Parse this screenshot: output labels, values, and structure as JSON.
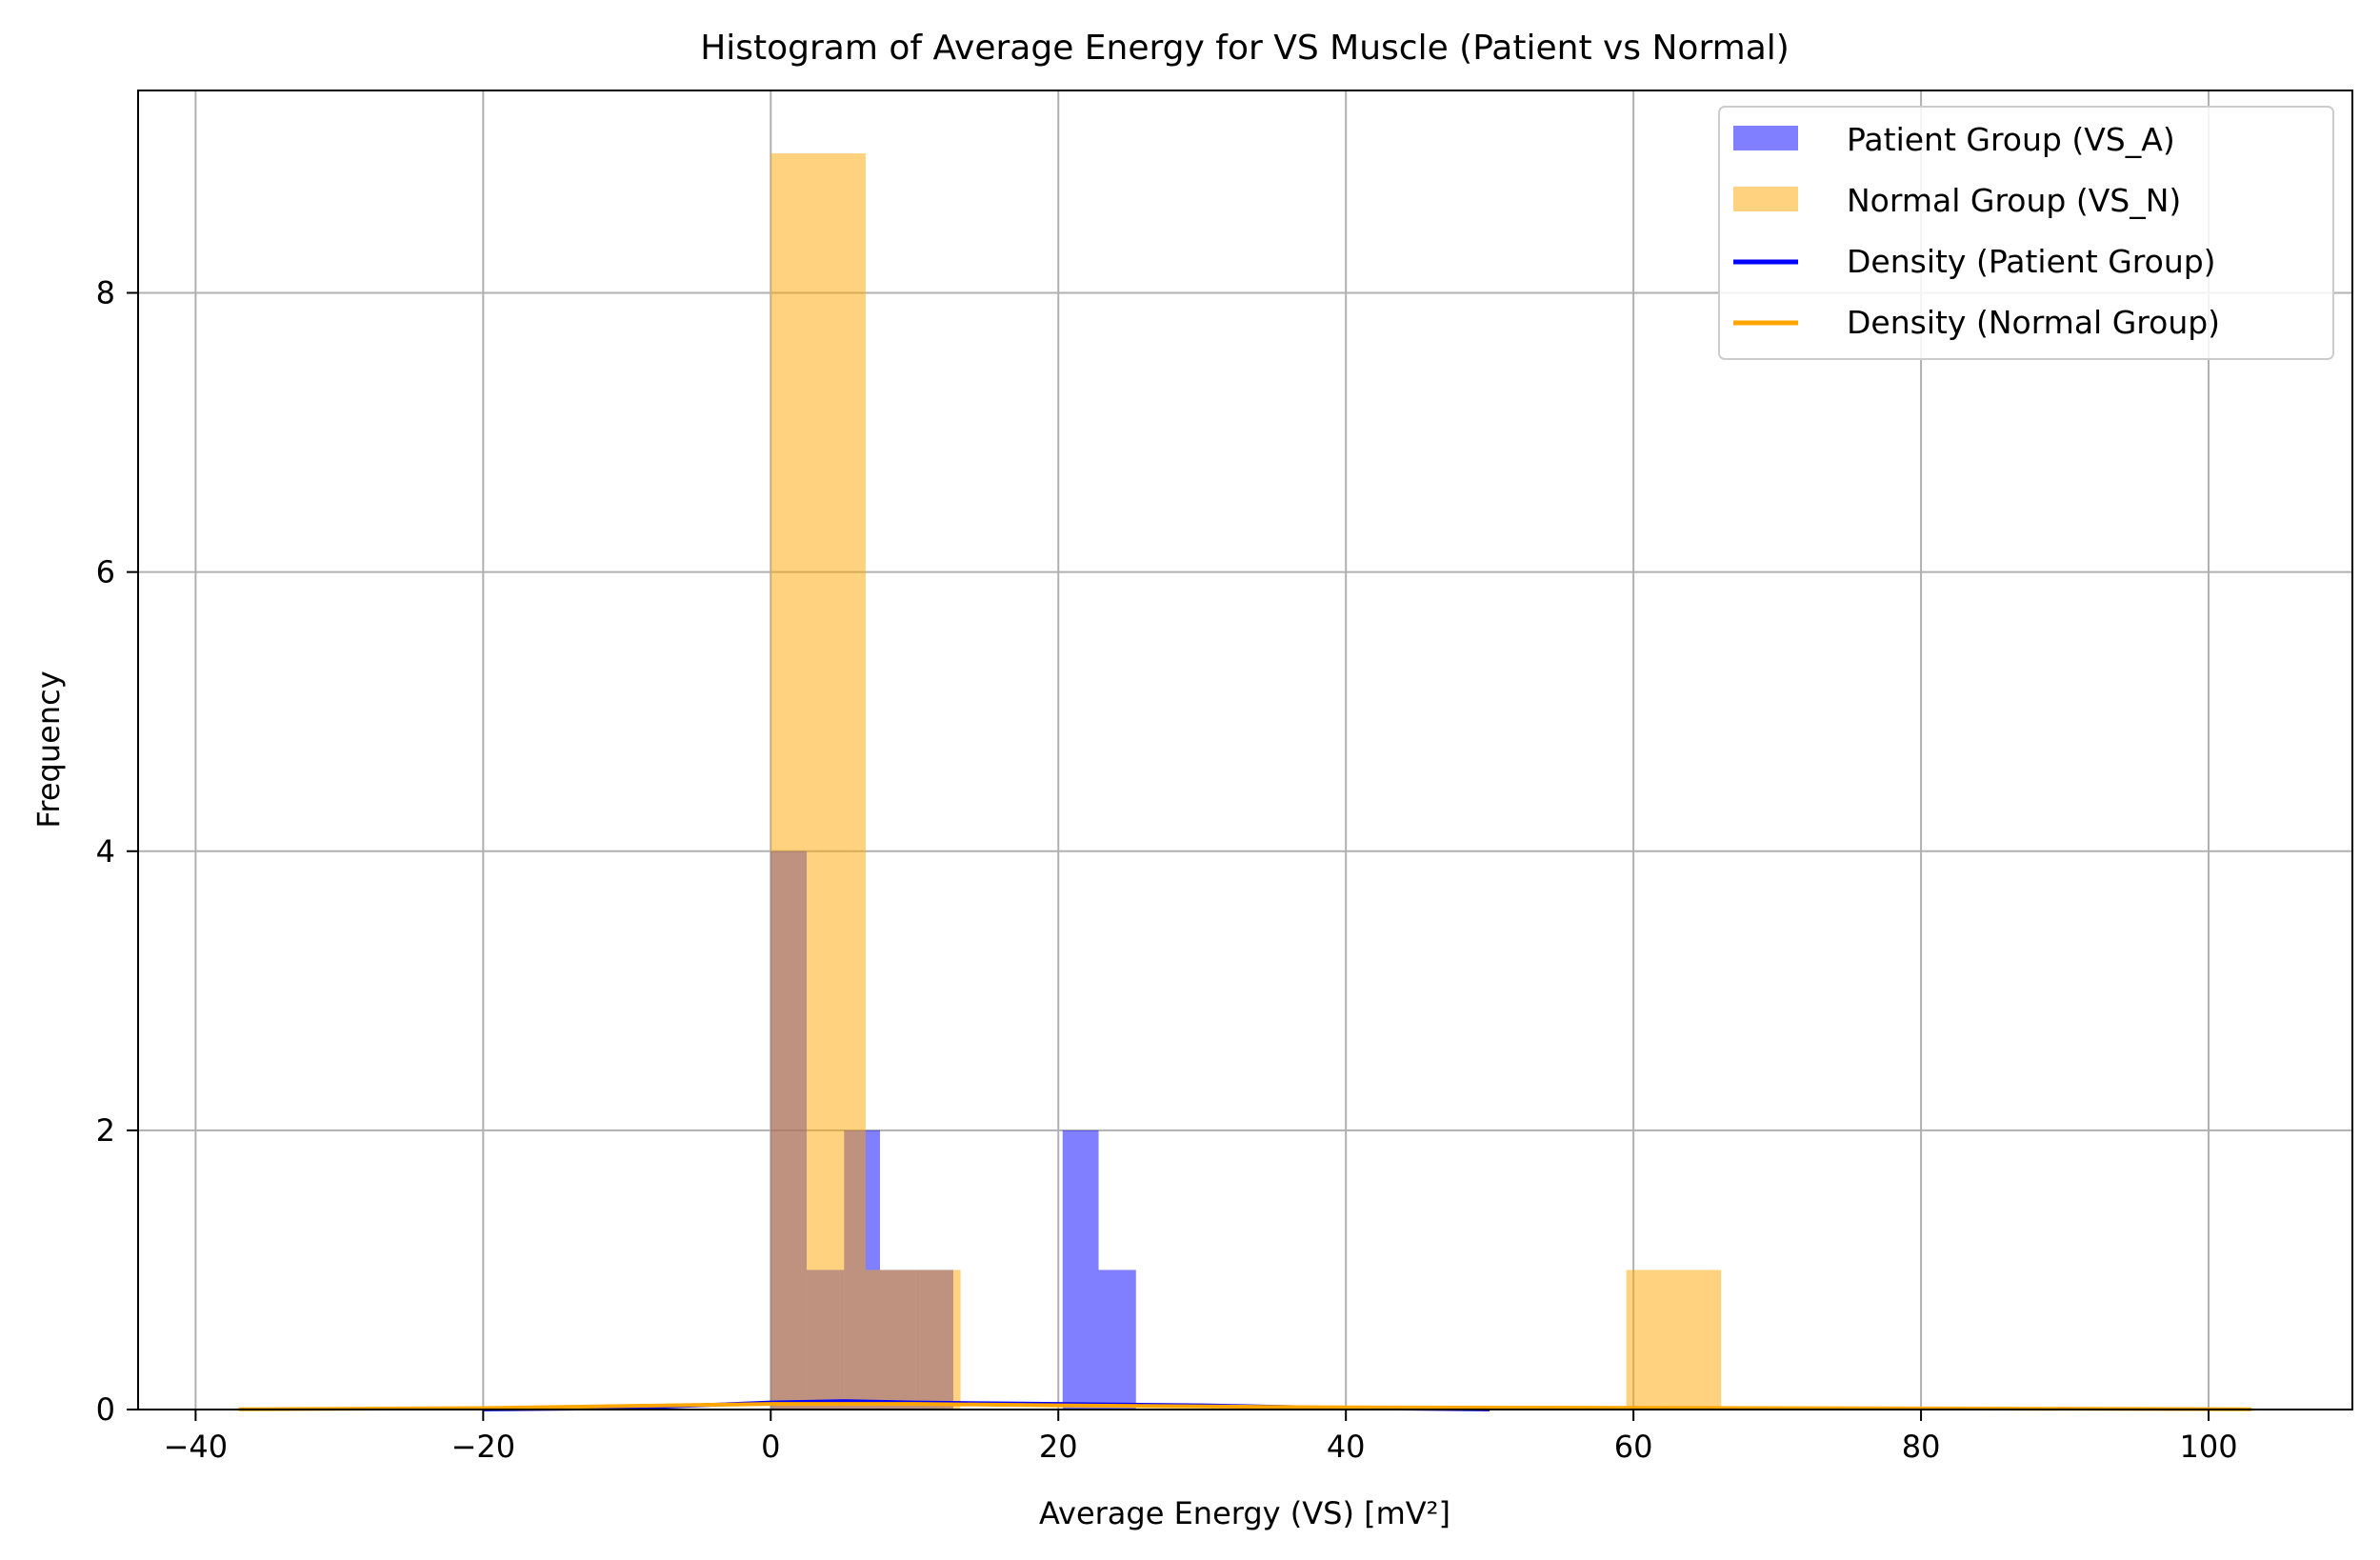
{
  "chart_data": {
    "type": "bar",
    "title": "Histogram of Average Energy for VS Muscle (Patient vs Normal)",
    "xlabel": "Average Energy (VS) [mV²]",
    "ylabel": "Frequency",
    "xlim": [
      -44,
      110
    ],
    "ylim": [
      0,
      9.45
    ],
    "xticks": [
      -40,
      -20,
      0,
      20,
      40,
      60,
      80,
      100
    ],
    "xtick_labels": [
      "−40",
      "−20",
      "0",
      "20",
      "40",
      "60",
      "80",
      "100"
    ],
    "yticks": [
      0,
      2,
      4,
      6,
      8
    ],
    "ytick_labels": [
      "0",
      "2",
      "4",
      "6",
      "8"
    ],
    "grid": true,
    "legend_position": "top-right",
    "series": [
      {
        "name": "Patient Group (VS_A)",
        "kind": "histogram",
        "color": "#0000ff",
        "opacity": 0.5,
        "bins": [
          {
            "x0": 0.0,
            "x1": 2.5,
            "count": 4
          },
          {
            "x0": 2.5,
            "x1": 5.1,
            "count": 1
          },
          {
            "x0": 5.1,
            "x1": 7.6,
            "count": 2
          },
          {
            "x0": 7.6,
            "x1": 10.1,
            "count": 1
          },
          {
            "x0": 10.1,
            "x1": 12.7,
            "count": 1
          },
          {
            "x0": 20.3,
            "x1": 22.8,
            "count": 2
          },
          {
            "x0": 22.8,
            "x1": 25.4,
            "count": 1
          }
        ]
      },
      {
        "name": "Normal Group (VS_N)",
        "kind": "histogram",
        "color": "#ffa500",
        "opacity": 0.5,
        "bins": [
          {
            "x0": 0.0,
            "x1": 6.6,
            "count": 9
          },
          {
            "x0": 6.6,
            "x1": 13.2,
            "count": 1
          },
          {
            "x0": 59.5,
            "x1": 66.1,
            "count": 1
          }
        ]
      },
      {
        "name": "Density (Patient Group)",
        "kind": "line",
        "color": "#0000ff",
        "x": [
          -20,
          -10,
          0,
          5,
          10,
          20,
          30,
          40,
          50
        ],
        "y": [
          0.0005,
          0.01,
          0.05,
          0.06,
          0.05,
          0.04,
          0.03,
          0.01,
          0.001
        ]
      },
      {
        "name": "Density (Normal Group)",
        "kind": "line",
        "color": "#ffa500",
        "x": [
          -37,
          -20,
          0,
          10,
          20,
          40,
          60,
          80,
          103
        ],
        "y": [
          0.002,
          0.01,
          0.04,
          0.04,
          0.03,
          0.015,
          0.012,
          0.008,
          0.002
        ]
      }
    ]
  }
}
